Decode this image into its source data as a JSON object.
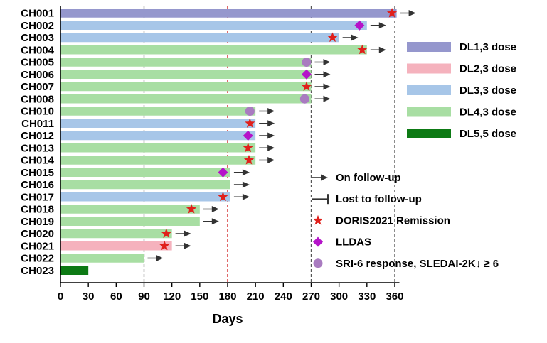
{
  "chart_data": {
    "type": "swimmer",
    "xlabel": "Days",
    "xlim": [
      0,
      365
    ],
    "xticks": [
      0,
      30,
      60,
      90,
      120,
      150,
      180,
      210,
      240,
      270,
      300,
      330,
      360
    ],
    "reference_lines": [
      {
        "x": 90,
        "style": "dashed",
        "color": "#555555"
      },
      {
        "x": 180,
        "style": "dashed",
        "color": "#d01c1c"
      },
      {
        "x": 270,
        "style": "dashed",
        "color": "#555555"
      },
      {
        "x": 360,
        "style": "dashed",
        "color": "#555555"
      }
    ],
    "dose_groups": [
      {
        "label": "DL1,3 dose",
        "color": "#9597cd"
      },
      {
        "label": "DL2,3 dose",
        "color": "#f5b2bd"
      },
      {
        "label": "DL3,3 dose",
        "color": "#a7c6e8"
      },
      {
        "label": "DL4,3 dose",
        "color": "#a8dea3"
      },
      {
        "label": "DL5,5 dose",
        "color": "#0d7a14"
      }
    ],
    "patients": [
      {
        "id": "CH001",
        "group": 0,
        "days": 362,
        "followup": true,
        "star": 357,
        "diamond": null,
        "circle": null
      },
      {
        "id": "CH002",
        "group": 2,
        "days": 330,
        "followup": true,
        "star": null,
        "diamond": 322,
        "circle": null
      },
      {
        "id": "CH003",
        "group": 2,
        "days": 300,
        "followup": true,
        "star": 293,
        "diamond": null,
        "circle": null
      },
      {
        "id": "CH004",
        "group": 3,
        "days": 330,
        "followup": true,
        "star": 325,
        "diamond": null,
        "circle": null
      },
      {
        "id": "CH005",
        "group": 3,
        "days": 270,
        "followup": true,
        "star": null,
        "diamond": null,
        "circle": 265
      },
      {
        "id": "CH006",
        "group": 3,
        "days": 270,
        "followup": true,
        "star": null,
        "diamond": 265,
        "circle": null
      },
      {
        "id": "CH007",
        "group": 3,
        "days": 270,
        "followup": true,
        "star": 265,
        "diamond": null,
        "circle": null
      },
      {
        "id": "CH008",
        "group": 3,
        "days": 270,
        "followup": true,
        "star": null,
        "diamond": null,
        "circle": 263
      },
      {
        "id": "CH010",
        "group": 3,
        "days": 210,
        "followup": true,
        "star": null,
        "diamond": null,
        "circle": 204
      },
      {
        "id": "CH011",
        "group": 2,
        "days": 210,
        "followup": true,
        "star": 204,
        "diamond": null,
        "circle": null
      },
      {
        "id": "CH012",
        "group": 2,
        "days": 210,
        "followup": true,
        "star": null,
        "diamond": 202,
        "circle": null
      },
      {
        "id": "CH013",
        "group": 3,
        "days": 210,
        "followup": true,
        "star": 202,
        "diamond": null,
        "circle": null
      },
      {
        "id": "CH014",
        "group": 3,
        "days": 210,
        "followup": true,
        "star": 203,
        "diamond": null,
        "circle": null
      },
      {
        "id": "CH015",
        "group": 3,
        "days": 183,
        "followup": true,
        "star": null,
        "diamond": 175,
        "circle": null
      },
      {
        "id": "CH016",
        "group": 3,
        "days": 183,
        "followup": true,
        "star": null,
        "diamond": null,
        "circle": null
      },
      {
        "id": "CH017",
        "group": 2,
        "days": 183,
        "followup": true,
        "star": 175,
        "diamond": null,
        "circle": null
      },
      {
        "id": "CH018",
        "group": 3,
        "days": 150,
        "followup": true,
        "star": 141,
        "diamond": null,
        "circle": null
      },
      {
        "id": "CH019",
        "group": 3,
        "days": 150,
        "followup": true,
        "star": null,
        "diamond": null,
        "circle": null
      },
      {
        "id": "CH020",
        "group": 3,
        "days": 120,
        "followup": true,
        "star": 114,
        "diamond": null,
        "circle": null
      },
      {
        "id": "CH021",
        "group": 1,
        "days": 120,
        "followup": true,
        "star": 112,
        "diamond": null,
        "circle": null
      },
      {
        "id": "CH022",
        "group": 3,
        "days": 90,
        "followup": true,
        "star": null,
        "diamond": null,
        "circle": null
      },
      {
        "id": "CH023",
        "group": 4,
        "days": 30,
        "followup": false,
        "star": null,
        "diamond": null,
        "circle": null
      }
    ],
    "marker_legend": [
      {
        "symbol": "arrow",
        "label": "On follow-up"
      },
      {
        "symbol": "bar-end",
        "label": "Lost to follow-up"
      },
      {
        "symbol": "star",
        "label": "DORIS2021 Remission",
        "color": "#e0201b"
      },
      {
        "symbol": "diamond",
        "label": "LLDAS",
        "color": "#b513c9"
      },
      {
        "symbol": "circle",
        "label": "SRI-6 response, SLEDAI-2K↓ ≥ 6",
        "color": "#a97bc0"
      }
    ]
  }
}
